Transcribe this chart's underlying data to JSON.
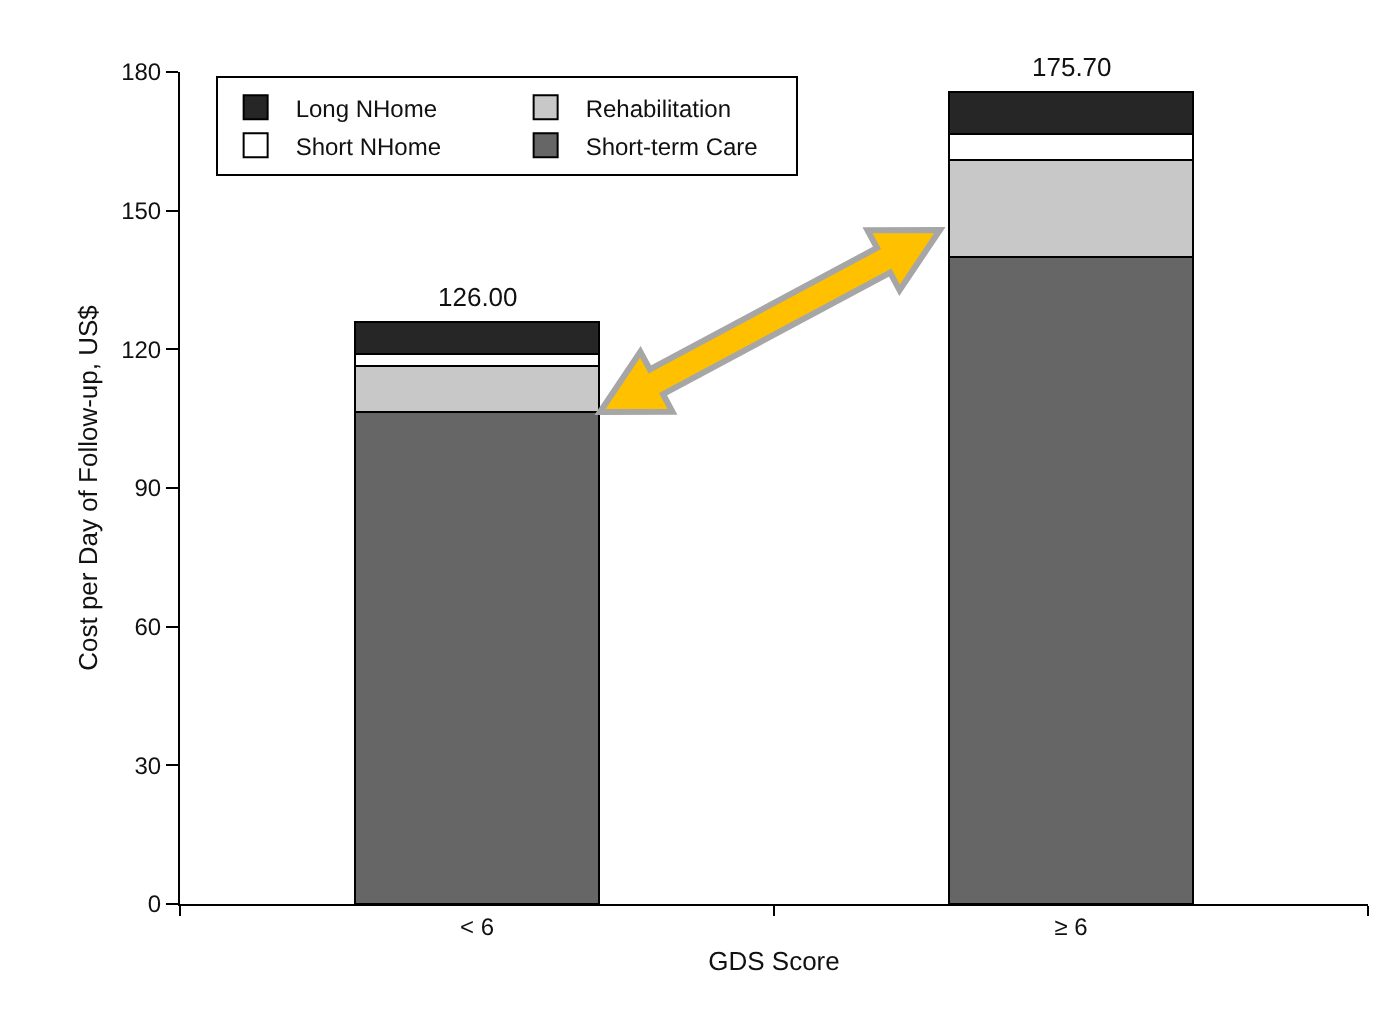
{
  "chart_data": {
    "type": "bar",
    "stacked": true,
    "xlabel": "GDS Score",
    "ylabel": "Cost per Day of Follow-up, US$",
    "categories": [
      "< 6",
      "≥ 6"
    ],
    "series": [
      {
        "name": "Short-term Care",
        "color": "#666666",
        "values": [
          106.5,
          140
        ]
      },
      {
        "name": "Rehabilitation",
        "color": "#c8c8c8",
        "values": [
          10,
          21
        ]
      },
      {
        "name": "Short NHome",
        "color": "#ffffff",
        "values": [
          2.5,
          5.6
        ]
      },
      {
        "name": "Long NHome",
        "color": "#262626",
        "values": [
          7,
          9.1
        ]
      }
    ],
    "totals": [
      "126.00",
      "175.70"
    ],
    "ylim": [
      0,
      180
    ],
    "yticks": [
      0,
      30,
      60,
      90,
      120,
      150,
      180
    ],
    "grid": false,
    "legend": "top left"
  }
}
